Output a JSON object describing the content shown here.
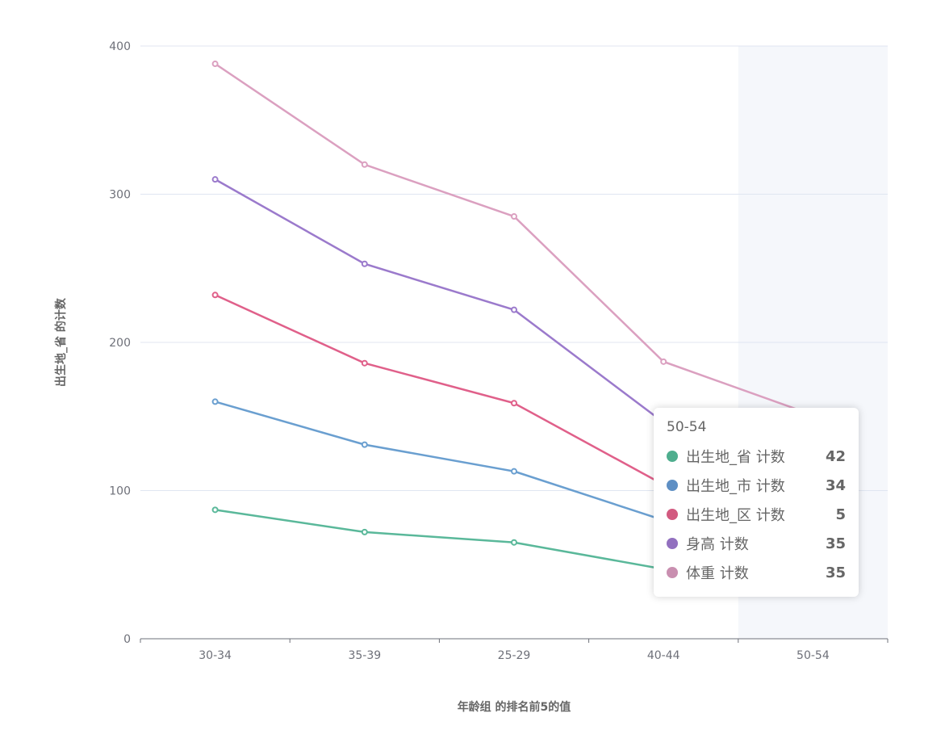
{
  "chart_data": {
    "type": "line",
    "stacked": true,
    "categories": [
      "30-34",
      "35-39",
      "25-29",
      "40-44",
      "50-54"
    ],
    "xlabel": "年龄组 的排名前5的值",
    "ylabel": "出生地_省 的计数",
    "ylim": [
      0,
      400
    ],
    "yticks": [
      0,
      100,
      200,
      300,
      400
    ],
    "grid": true,
    "highlighted_category": "50-54",
    "series": [
      {
        "name": "出生地_省 计数",
        "color": "#5ab89a",
        "values": [
          87,
          72,
          65,
          47,
          42
        ]
      },
      {
        "name": "出生地_市 计数",
        "color": "#6a9fd0",
        "values": [
          73,
          59,
          48,
          33,
          34
        ]
      },
      {
        "name": "出生地_区 计数",
        "color": "#e0608a",
        "values": [
          72,
          55,
          46,
          24,
          5
        ]
      },
      {
        "name": "身高 计数",
        "color": "#9b7acc",
        "values": [
          78,
          67,
          63,
          42,
          35
        ]
      },
      {
        "name": "体重 计数",
        "color": "#dba0c0",
        "values": [
          78,
          67,
          63,
          41,
          35
        ]
      }
    ]
  },
  "tooltip": {
    "title": "50-54",
    "items": [
      {
        "label": "出生地_省 计数",
        "value": "42",
        "color": "#4fae8e"
      },
      {
        "label": "出生地_市 计数",
        "value": "34",
        "color": "#5e8fc4"
      },
      {
        "label": "出生地_区 计数",
        "value": "5",
        "color": "#d25a80"
      },
      {
        "label": "身高 计数",
        "value": "35",
        "color": "#9270bf"
      },
      {
        "label": "体重 计数",
        "value": "35",
        "color": "#c98fb0"
      }
    ]
  }
}
